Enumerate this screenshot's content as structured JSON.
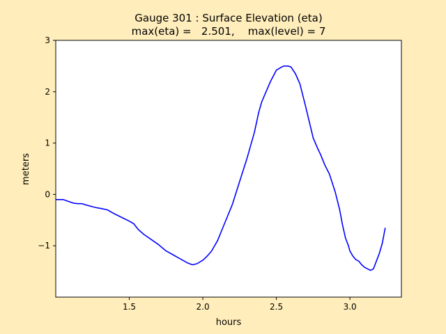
{
  "chart_data": {
    "type": "line",
    "title_line1": "Gauge 301 : Surface Elevation (eta)",
    "title_line2": "max(eta) =   2.501,    max(level) = 7",
    "xlabel": "hours",
    "ylabel": "meters",
    "xlim": [
      1.0,
      3.35
    ],
    "ylim": [
      -2.0,
      3.0
    ],
    "xticks": [
      1.5,
      2.0,
      2.5,
      3.0
    ],
    "xtick_labels": [
      "1.5",
      "2.0",
      "2.5",
      "3.0"
    ],
    "yticks": [
      -1,
      0,
      1,
      2,
      3
    ],
    "ytick_labels": [
      "−1",
      "0",
      "1",
      "2",
      "3"
    ],
    "grid": false,
    "colors": {
      "line": "#0000ff",
      "background": "#ffeebb",
      "plot": "#ffffff"
    },
    "series": [
      {
        "x": [
          1.0,
          1.05,
          1.08,
          1.12,
          1.15,
          1.18,
          1.2,
          1.25,
          1.28,
          1.3,
          1.35,
          1.4,
          1.45,
          1.5,
          1.53,
          1.56,
          1.6,
          1.65,
          1.7,
          1.75,
          1.8,
          1.85,
          1.9,
          1.93,
          1.96,
          2.0,
          2.03,
          2.06,
          2.1,
          2.15,
          2.2,
          2.25,
          2.3,
          2.35,
          2.38,
          2.4,
          2.43,
          2.46,
          2.5,
          2.53,
          2.55,
          2.58,
          2.6,
          2.63,
          2.66,
          2.7,
          2.75,
          2.78,
          2.8,
          2.83,
          2.86,
          2.9,
          2.93,
          2.95,
          2.97,
          2.99,
          3.0,
          3.02,
          3.04,
          3.06,
          3.08,
          3.1,
          3.12,
          3.14,
          3.16,
          3.18,
          3.2,
          3.22,
          3.24
        ],
        "y": [
          -0.1,
          -0.1,
          -0.13,
          -0.17,
          -0.18,
          -0.18,
          -0.2,
          -0.24,
          -0.26,
          -0.27,
          -0.3,
          -0.38,
          -0.45,
          -0.52,
          -0.57,
          -0.68,
          -0.78,
          -0.88,
          -0.98,
          -1.1,
          -1.18,
          -1.26,
          -1.34,
          -1.37,
          -1.35,
          -1.28,
          -1.2,
          -1.1,
          -0.9,
          -0.55,
          -0.2,
          0.25,
          0.7,
          1.2,
          1.6,
          1.8,
          2.0,
          2.2,
          2.42,
          2.47,
          2.5,
          2.5,
          2.48,
          2.35,
          2.15,
          1.7,
          1.1,
          0.9,
          0.78,
          0.57,
          0.4,
          0.05,
          -0.3,
          -0.6,
          -0.85,
          -1.0,
          -1.1,
          -1.2,
          -1.27,
          -1.3,
          -1.37,
          -1.42,
          -1.45,
          -1.48,
          -1.45,
          -1.3,
          -1.15,
          -0.95,
          -0.65
        ]
      }
    ]
  }
}
